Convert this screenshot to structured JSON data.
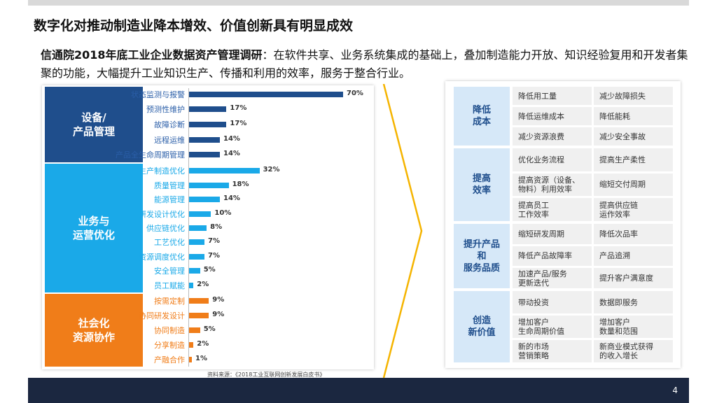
{
  "title": "数字化对推动制造业降本增效、价值创新具有明显成效",
  "intro": {
    "bold": "信通院2018年底工业企业数据资产管理调研",
    "text": "：在软件共享、业务系统集成的基础上，叠加制造能力开放、知识经验复用和开发者集聚的功能，大幅提升工业知识生产、传播和利用的效率，服务于整合行业。"
  },
  "chart_data": {
    "type": "bar",
    "orientation": "horizontal",
    "unit": "%",
    "groups": [
      {
        "name": "设备/\n产品管理",
        "color": "#1f4e8c",
        "label_color": "#2a5ea8",
        "categories": [
          "状态监测与报警",
          "预测性维护",
          "故障诊断",
          "远程运维",
          "产品全生命周期管理"
        ],
        "values": [
          70,
          17,
          17,
          14,
          14
        ]
      },
      {
        "name": "业务与\n运营优化",
        "color": "#1aa9e8",
        "label_color": "#1aa9e8",
        "categories": [
          "生产制造优化",
          "质量管理",
          "能源管理",
          "研发设计优化",
          "供应链优化",
          "工艺优化",
          "资源调度优化",
          "安全管理",
          "员工赋能"
        ],
        "values": [
          32,
          18,
          14,
          10,
          8,
          7,
          7,
          5,
          2
        ]
      },
      {
        "name": "社会化\n资源协作",
        "color": "#f07d19",
        "label_color": "#f07d19",
        "categories": [
          "按需定制",
          "协同研发设计",
          "协同制造",
          "分享制造",
          "产融合作"
        ],
        "values": [
          9,
          9,
          5,
          2,
          1
        ]
      }
    ],
    "xlim": [
      0,
      70
    ]
  },
  "source": "资料来源：《2018工业互联网创新发展白皮书》",
  "matrix": {
    "sections": [
      {
        "name": "降低\n成本",
        "cells": [
          [
            "降低用工量",
            "减少故障损失"
          ],
          [
            "降低运维成本",
            "降低能耗"
          ],
          [
            "减少资源浪费",
            "减少安全事故"
          ]
        ]
      },
      {
        "name": "提高\n效率",
        "cells": [
          [
            "优化业务流程",
            "提高生产柔性"
          ],
          [
            "提高资源（设备、\n物料）利用效率",
            "缩短交付周期"
          ],
          [
            "提高员工\n工作效率",
            "提高供应链\n运作效率"
          ]
        ]
      },
      {
        "name": "提升产品\n和\n服务品质",
        "cells": [
          [
            "缩短研发周期",
            "降低次品率"
          ],
          [
            "降低产品故障率",
            "产品追溯"
          ],
          [
            "加速产品/服务\n更新迭代",
            "提升客户满意度"
          ]
        ]
      },
      {
        "name": "创造\n新价值",
        "cells": [
          [
            "带动投资",
            "数据即服务"
          ],
          [
            "增加客户\n生命周期价值",
            "增加客户\n数量和范围"
          ],
          [
            "新的市场\n营销策略",
            "新商业模式获得\n的收入增长"
          ]
        ]
      }
    ]
  },
  "colors": {
    "accent_arrow": "#f5b400",
    "footer": "#1b2740"
  },
  "page_number": "4"
}
